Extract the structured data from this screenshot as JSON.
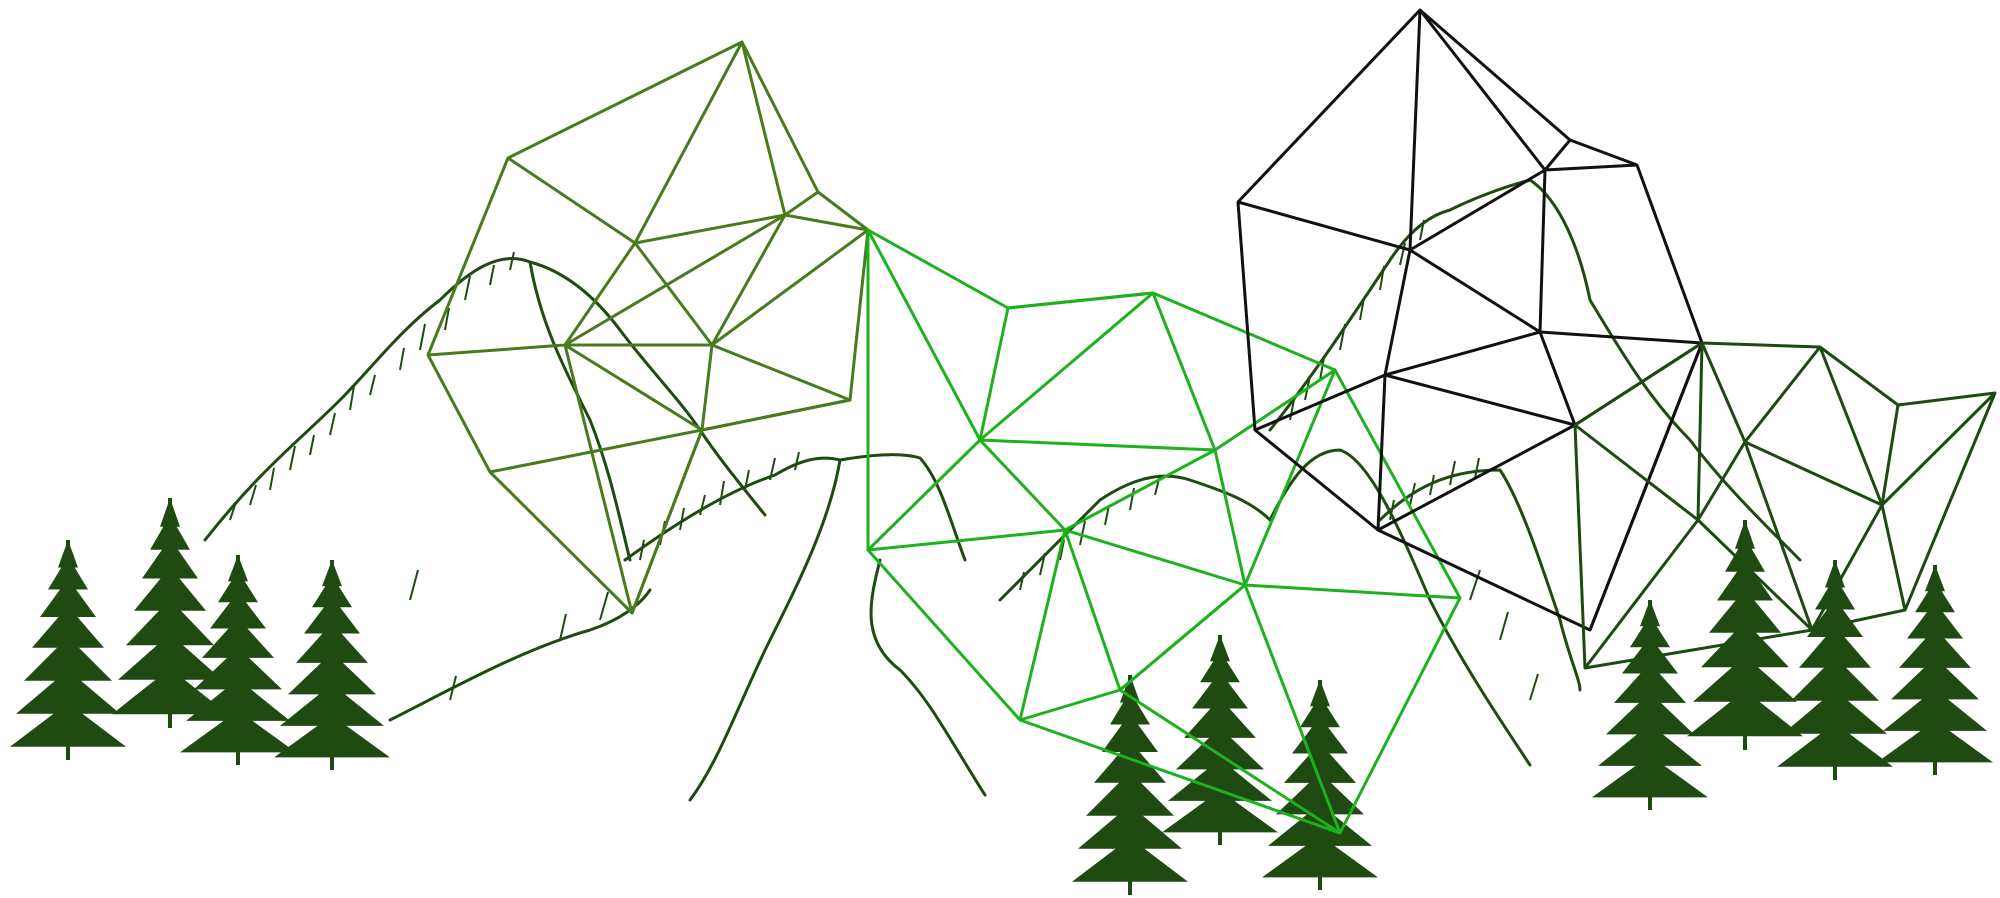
{
  "artwork": {
    "subject": "mountain-range-with-geometric-wireframes",
    "colors": {
      "background": "#ffffff",
      "ink": "#1f4a12",
      "mesh_olive": "#4a7a1e",
      "mesh_bright": "#1db21d",
      "mesh_black": "#111111",
      "mesh_dark": "#1d4a12"
    },
    "elements": [
      "mountains",
      "pine-trees",
      "wireframe-meshes"
    ]
  }
}
